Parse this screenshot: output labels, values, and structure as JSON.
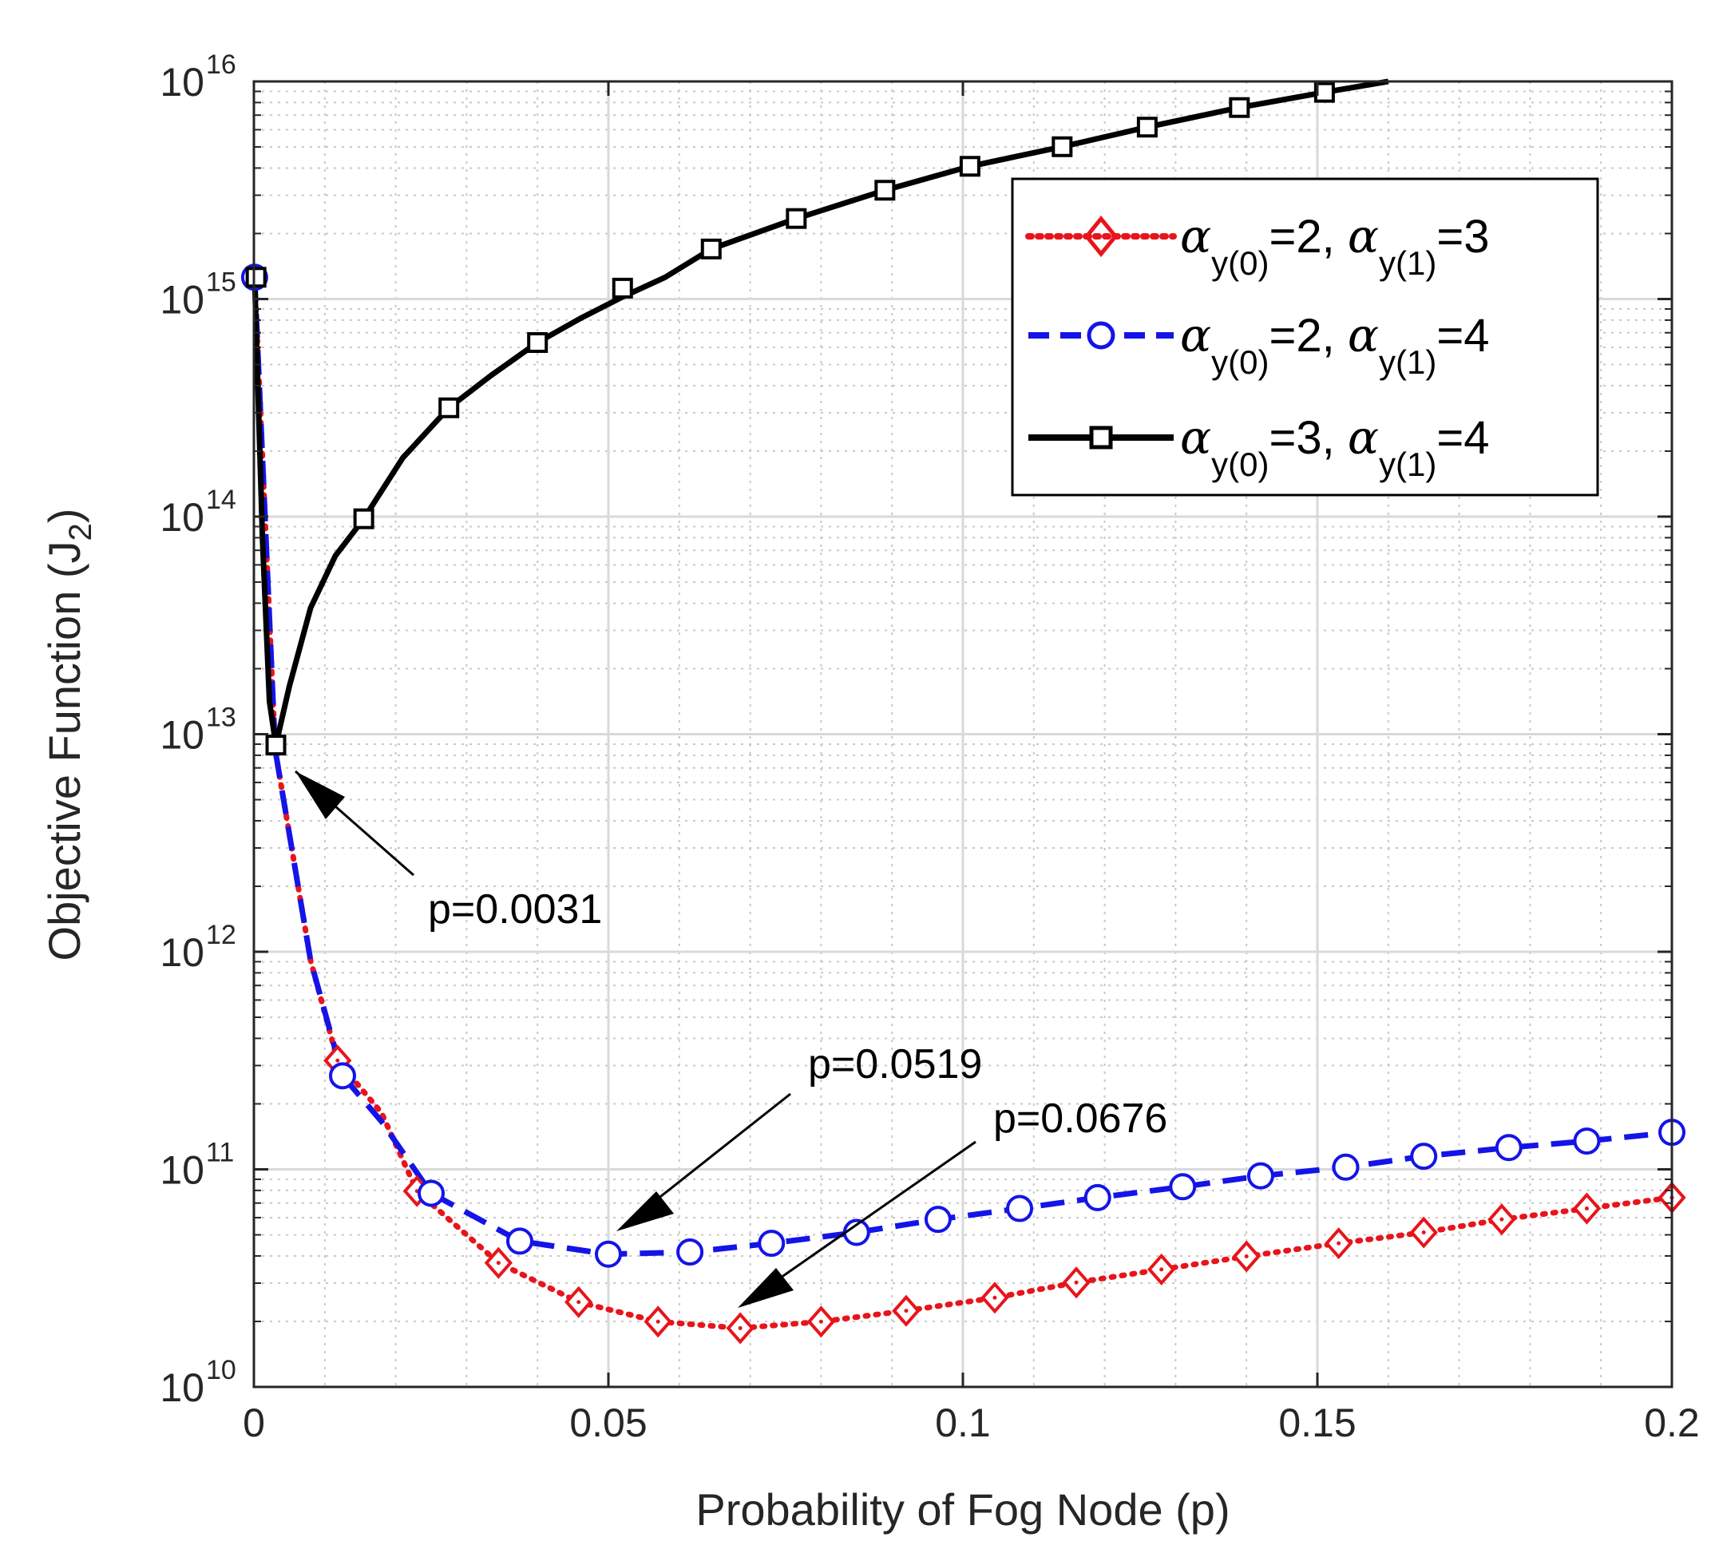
{
  "chart_data": {
    "type": "line",
    "yscale": "log",
    "xlabel": "Probability of Fog Node (p)",
    "ylabel_main": "Objective Function (J",
    "ylabel_sub": "2",
    "ylabel_close": ")",
    "xlim": [
      0,
      0.2
    ],
    "ylim_exp": [
      10,
      16
    ],
    "xticks": [
      0,
      0.05,
      0.1,
      0.15,
      0.2
    ],
    "xtick_labels": [
      "0",
      "0.05",
      "0.1",
      "0.15",
      "0.2"
    ],
    "ytick_exps": [
      10,
      11,
      12,
      13,
      14,
      15,
      16
    ],
    "ytick_base": "10",
    "ytick_exp_labels": [
      "10",
      "11",
      "12",
      "13",
      "14",
      "15",
      "16"
    ],
    "grid": true,
    "legend_position": "top-right",
    "series": [
      {
        "name": "alpha_y(0)=2, alpha_y(1)=3",
        "legend": {
          "a": "α",
          "s1": "y(0)",
          "m": "=2, ",
          "a2": "α",
          "s2": "y(1)",
          "e": "=3"
        },
        "color": "#e8141b",
        "style": "dotted",
        "marker": "diamond",
        "x": [
          0.0001,
          0.003,
          0.008,
          0.0118,
          0.018,
          0.023,
          0.0345,
          0.0458,
          0.057,
          0.0686,
          0.08,
          0.092,
          0.1045,
          0.116,
          0.128,
          0.14,
          0.153,
          0.165,
          0.176,
          0.188,
          0.2
        ],
        "logy": [
          15.1,
          12.93,
          11.96,
          11.5,
          11.26,
          10.9,
          10.57,
          10.39,
          10.3,
          10.27,
          10.3,
          10.35,
          10.41,
          10.48,
          10.54,
          10.6,
          10.66,
          10.71,
          10.77,
          10.82,
          10.87
        ],
        "markers_x": [
          0.0118,
          0.023,
          0.0345,
          0.0458,
          0.057,
          0.0686,
          0.08,
          0.092,
          0.1045,
          0.116,
          0.128,
          0.14,
          0.153,
          0.165,
          0.176,
          0.188,
          0.2
        ],
        "markers_logy": [
          11.5,
          10.9,
          10.57,
          10.39,
          10.3,
          10.27,
          10.3,
          10.35,
          10.41,
          10.48,
          10.54,
          10.6,
          10.66,
          10.71,
          10.77,
          10.82,
          10.87
        ]
      },
      {
        "name": "alpha_y(0)=2, alpha_y(1)=4",
        "legend": {
          "a": "α",
          "s1": "y(0)",
          "m": "=2, ",
          "a2": "α",
          "s2": "y(1)",
          "e": "=4"
        },
        "color": "#1414e8",
        "style": "dashed",
        "marker": "circle",
        "x": [
          0.0001,
          0.003,
          0.008,
          0.0125,
          0.018,
          0.025,
          0.0375,
          0.05,
          0.0615,
          0.073,
          0.085,
          0.0965,
          0.108,
          0.119,
          0.131,
          0.142,
          0.154,
          0.165,
          0.177,
          0.188,
          0.2
        ],
        "logy": [
          15.1,
          12.93,
          11.96,
          11.43,
          11.22,
          10.89,
          10.67,
          10.61,
          10.62,
          10.66,
          10.71,
          10.77,
          10.82,
          10.87,
          10.92,
          10.97,
          11.01,
          11.06,
          11.1,
          11.13,
          11.17
        ],
        "markers_x": [
          0.0001,
          0.0125,
          0.025,
          0.0375,
          0.05,
          0.0615,
          0.073,
          0.085,
          0.0965,
          0.108,
          0.119,
          0.131,
          0.142,
          0.154,
          0.165,
          0.177,
          0.188,
          0.2
        ],
        "markers_logy": [
          15.1,
          11.43,
          10.89,
          10.67,
          10.61,
          10.62,
          10.66,
          10.71,
          10.77,
          10.82,
          10.87,
          10.92,
          10.97,
          11.01,
          11.06,
          11.1,
          11.13,
          11.17
        ]
      },
      {
        "name": "alpha_y(0)=3, alpha_y(1)=4",
        "legend": {
          "a": "α",
          "s1": "y(0)",
          "m": "=3, ",
          "a2": "α",
          "s2": "y(1)",
          "e": "=4"
        },
        "color": "#000000",
        "style": "solid",
        "marker": "square",
        "x": [
          0.0001,
          0.0012,
          0.0022,
          0.0031,
          0.005,
          0.008,
          0.0115,
          0.0155,
          0.021,
          0.0275,
          0.0335,
          0.04,
          0.046,
          0.052,
          0.058,
          0.0645,
          0.0765,
          0.089,
          0.101,
          0.114,
          0.126,
          0.139,
          0.151,
          0.16
        ],
        "logy": [
          15.1,
          13.9,
          13.15,
          12.95,
          13.22,
          13.58,
          13.82,
          13.99,
          14.27,
          14.5,
          14.65,
          14.8,
          14.91,
          15.01,
          15.1,
          15.23,
          15.37,
          15.5,
          15.61,
          15.7,
          15.79,
          15.88,
          15.95,
          16.0
        ],
        "markers_x": [
          0.0003,
          0.0031,
          0.0155,
          0.0275,
          0.04,
          0.052,
          0.0645,
          0.0765,
          0.089,
          0.101,
          0.114,
          0.126,
          0.139,
          0.151
        ],
        "markers_logy": [
          15.1,
          12.95,
          13.99,
          14.5,
          14.8,
          15.05,
          15.23,
          15.37,
          15.5,
          15.61,
          15.7,
          15.79,
          15.88,
          15.95
        ]
      }
    ],
    "annotations": [
      {
        "text": "p=0.0031",
        "x": 0.0031,
        "logy": 12.93
      },
      {
        "text": "p=0.0519",
        "x": 0.0519,
        "logy": 10.61
      },
      {
        "text": "p=0.0676",
        "x": 0.0676,
        "logy": 10.27
      }
    ]
  }
}
